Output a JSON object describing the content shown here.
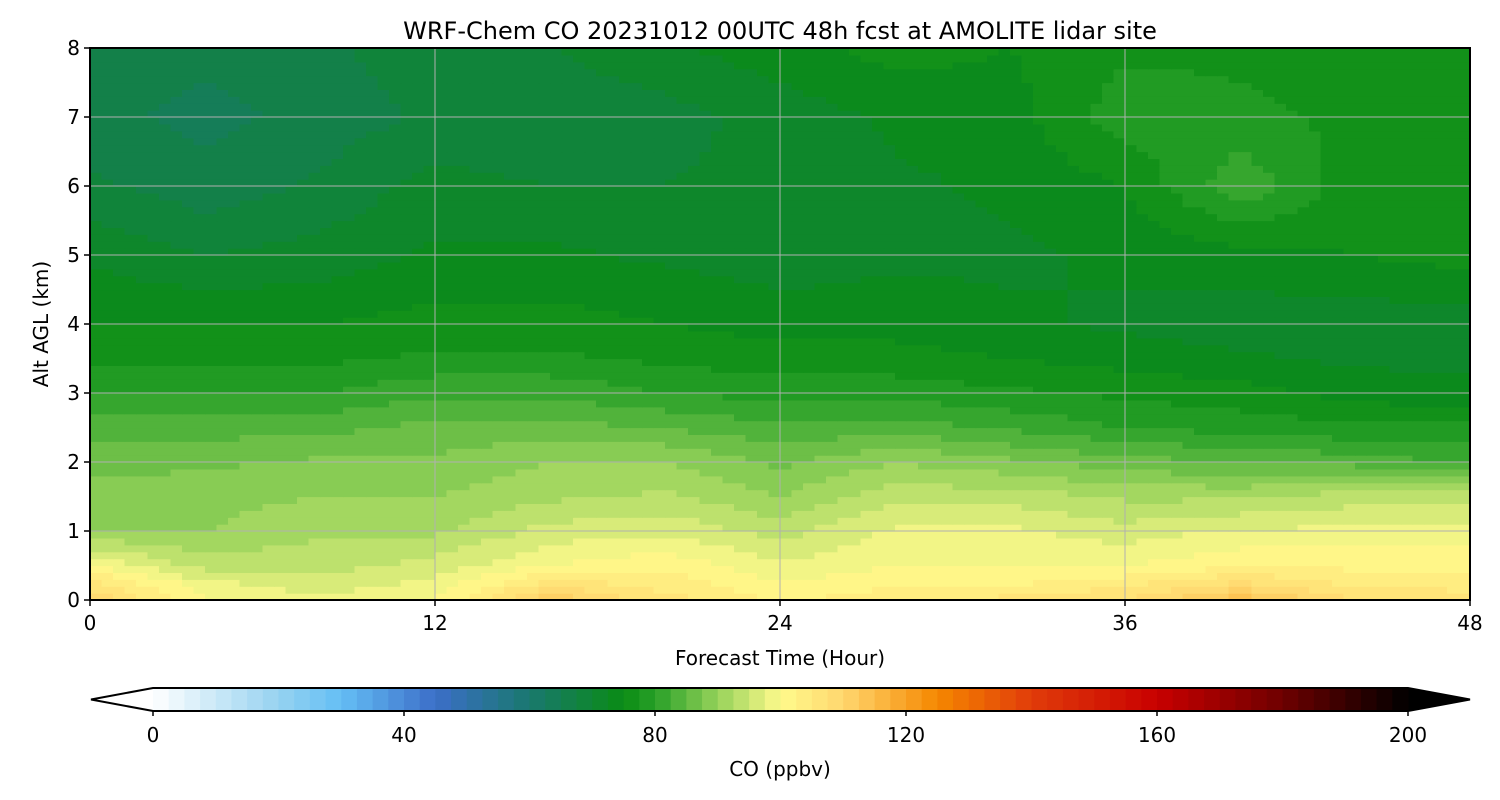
{
  "chart_data": {
    "type": "heatmap",
    "title": "WRF-Chem CO  20231012 00UTC 48h fcst at AMOLITE lidar site",
    "xlabel": "Forecast Time (Hour)",
    "ylabel": "Alt AGL (km)",
    "xlim": [
      0,
      48
    ],
    "ylim": [
      0,
      8
    ],
    "xticks": [
      "0",
      "12",
      "24",
      "36",
      "48"
    ],
    "yticks": [
      "0",
      "1",
      "2",
      "3",
      "4",
      "5",
      "6",
      "7",
      "8"
    ],
    "grid": true,
    "colorbar": {
      "label": "CO  (ppbv)",
      "min": 0,
      "max": 200,
      "ticks": [
        "0",
        "40",
        "80",
        "120",
        "160",
        "200"
      ],
      "extend": "both",
      "orientation": "horizontal"
    },
    "x": [
      0,
      4,
      8,
      12,
      16,
      20,
      24,
      28,
      32,
      36,
      40,
      44,
      48
    ],
    "y": [
      0,
      0.25,
      0.5,
      1,
      1.5,
      2,
      2.5,
      3,
      3.5,
      4,
      5,
      6,
      7,
      8
    ],
    "z": [
      [
        110,
        100,
        98,
        100,
        112,
        106,
        102,
        104,
        106,
        108,
        114,
        108,
        106
      ],
      [
        106,
        98,
        96,
        98,
        106,
        104,
        100,
        102,
        102,
        104,
        108,
        104,
        104
      ],
      [
        100,
        94,
        94,
        96,
        100,
        102,
        98,
        100,
        100,
        100,
        102,
        102,
        102
      ],
      [
        90,
        90,
        92,
        92,
        96,
        97,
        94,
        98,
        98,
        96,
        98,
        98,
        98
      ],
      [
        88,
        89,
        90,
        90,
        92,
        93,
        90,
        94,
        94,
        92,
        92,
        94,
        94
      ],
      [
        87,
        87,
        88,
        88,
        90,
        90,
        87,
        90,
        88,
        86,
        85,
        84,
        82
      ],
      [
        84,
        84,
        84,
        86,
        86,
        85,
        83,
        84,
        82,
        80,
        79,
        78,
        78
      ],
      [
        80,
        80,
        80,
        82,
        82,
        80,
        79,
        79,
        78,
        77,
        76,
        74,
        73
      ],
      [
        77,
        77,
        77,
        78,
        78,
        77,
        76,
        76,
        75,
        74,
        73,
        72,
        72
      ],
      [
        75,
        75,
        75,
        76,
        76,
        75,
        74,
        74,
        73,
        72,
        71,
        71,
        71
      ],
      [
        72,
        70,
        71,
        73,
        73,
        72,
        71,
        72,
        72,
        73,
        74,
        75,
        76
      ],
      [
        68,
        66,
        68,
        71,
        70,
        70,
        71,
        72,
        73,
        75,
        82,
        76,
        77
      ],
      [
        66,
        64,
        66,
        68,
        68,
        69,
        71,
        73,
        74,
        79,
        78,
        77,
        77
      ],
      [
        67,
        66,
        67,
        69,
        70,
        72,
        74,
        76,
        75,
        77,
        77,
        77,
        77
      ]
    ]
  }
}
